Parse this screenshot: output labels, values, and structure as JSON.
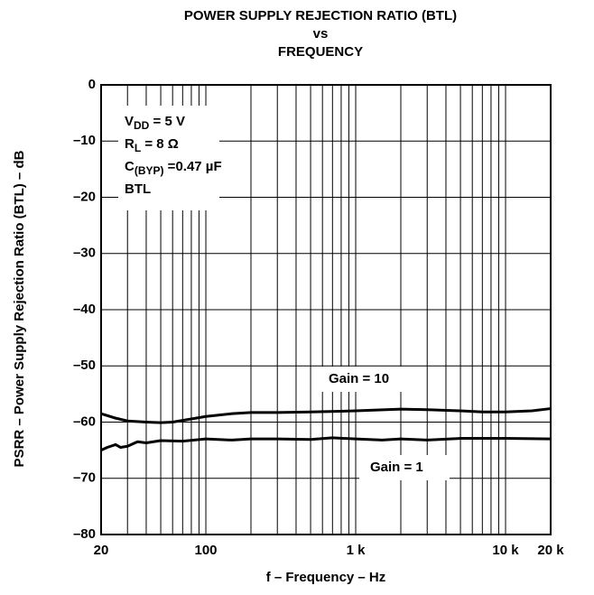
{
  "chart_data": {
    "type": "line",
    "title": [
      "POWER SUPPLY REJECTION RATIO (BTL)",
      "vs",
      "FREQUENCY"
    ],
    "xlabel": "f – Frequency – Hz",
    "ylabel": "PSRR – Power Supply Rejection Ratio (BTL) – dB",
    "xscale": "log",
    "xlim": [
      20,
      20000
    ],
    "ylim": [
      -80,
      0
    ],
    "xticks": [
      20,
      100,
      {
        "value": 1000,
        "label": "1 k"
      },
      {
        "value": 10000,
        "label": "10 k"
      },
      {
        "value": 20000,
        "label": "20 k"
      }
    ],
    "xgrid": [
      30,
      40,
      50,
      60,
      70,
      80,
      90,
      200,
      300,
      400,
      500,
      600,
      700,
      800,
      900,
      2000,
      3000,
      4000,
      5000,
      6000,
      7000,
      8000,
      9000
    ],
    "yticks": [
      0,
      {
        "value": -10,
        "label": "–10"
      },
      {
        "value": -20,
        "label": "–20"
      },
      {
        "value": -30,
        "label": "–30"
      },
      {
        "value": -40,
        "label": "–40"
      },
      {
        "value": -50,
        "label": "–50"
      },
      {
        "value": -60,
        "label": "–60"
      },
      {
        "value": -70,
        "label": "–70"
      },
      {
        "value": -80,
        "label": "–80"
      }
    ],
    "grid": true,
    "conditions": [
      {
        "main": "V",
        "sub": "DD",
        "rest": " = 5 V"
      },
      {
        "main": "R",
        "sub": "L",
        "rest": " = 8 Ω"
      },
      {
        "main": "C",
        "sub": "(BYP)",
        "rest": " =0.47 µF"
      },
      {
        "main": "BTL"
      }
    ],
    "series": [
      {
        "name": "Gain = 10",
        "color": "#000000",
        "x": [
          20,
          25,
          30,
          40,
          50,
          60,
          70,
          100,
          150,
          200,
          300,
          500,
          1000,
          2000,
          3000,
          5000,
          7000,
          10000,
          15000,
          20000
        ],
        "values": [
          -58.5,
          -59.3,
          -59.8,
          -60,
          -60.1,
          -60,
          -59.7,
          -59,
          -58.5,
          -58.3,
          -58.3,
          -58.2,
          -58,
          -57.7,
          -57.8,
          -58,
          -58.2,
          -58.2,
          -58,
          -57.6
        ]
      },
      {
        "name": "Gain = 1",
        "color": "#000000",
        "x": [
          20,
          22,
          25,
          27,
          30,
          35,
          40,
          50,
          70,
          100,
          150,
          200,
          300,
          500,
          700,
          1000,
          1500,
          2000,
          3000,
          5000,
          10000,
          20000
        ],
        "values": [
          -65,
          -64.5,
          -64,
          -64.5,
          -64.3,
          -63.5,
          -63.7,
          -63.3,
          -63.4,
          -63,
          -63.2,
          -63,
          -63,
          -63.1,
          -62.8,
          -63,
          -63.2,
          -63,
          -63.2,
          -62.9,
          -62.9,
          -63
        ]
      }
    ]
  }
}
